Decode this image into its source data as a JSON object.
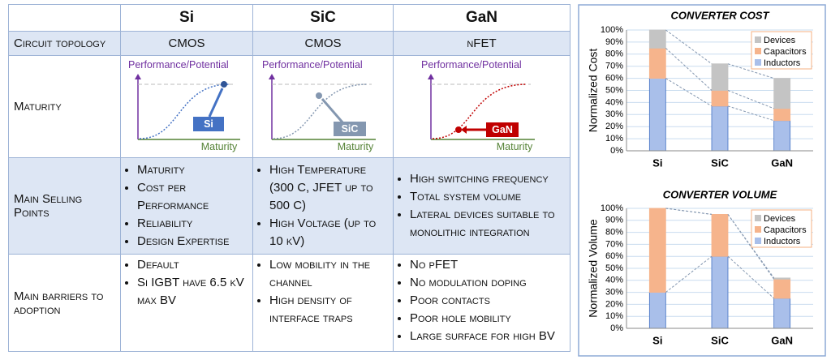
{
  "table": {
    "header": [
      "Si",
      "SiC",
      "GaN"
    ],
    "rows": [
      {
        "label": "Circuit topology",
        "cells": [
          "CMOS",
          "CMOS",
          "nFET"
        ]
      },
      {
        "label": "Maturity",
        "cells": [
          {
            "y_axis": "Performance/Potential",
            "x_axis": "Maturity",
            "tag": "Si"
          },
          {
            "y_axis": "Performance/Potential",
            "x_axis": "Maturity",
            "tag": "SiC"
          },
          {
            "y_axis": "Performance/Potential",
            "x_axis": "Maturity",
            "tag": "GaN"
          }
        ]
      },
      {
        "label": "Main Selling Points",
        "cells": [
          [
            "Maturity",
            "Cost per Performance",
            "Reliability",
            "Design Expertise"
          ],
          [
            "High Temperature (300 C, JFET up to 500 C)",
            "High Voltage (up to 10 kV)"
          ],
          [
            "High switching frequency",
            "Total system volume",
            "Lateral devices suitable to monolithic integration"
          ]
        ]
      },
      {
        "label": "Main barriers to adoption",
        "cells": [
          [
            "Default",
            "Si IGBT have 6.5 kV max BV"
          ],
          [
            "Low mobility in the channel",
            "High density of interface traps"
          ],
          [
            "No pFET",
            "No modulation doping",
            "Poor contacts",
            "Poor hole mobility",
            "Large surface for high BV"
          ]
        ]
      }
    ]
  },
  "chart_data": [
    {
      "type": "bar",
      "stacked": true,
      "title": "CONVERTER COST",
      "ylabel": "Normalized Cost",
      "categories": [
        "Si",
        "SiC",
        "GaN"
      ],
      "series": [
        {
          "name": "Inductors",
          "color": "#a9bfea",
          "values": [
            60,
            37,
            25
          ]
        },
        {
          "name": "Capacitors",
          "color": "#f6b48c",
          "values": [
            25,
            13,
            10
          ]
        },
        {
          "name": "Devices",
          "color": "#c4c4c4",
          "values": [
            15,
            22,
            25
          ]
        }
      ],
      "ylim": [
        0,
        100
      ],
      "yticks": [
        {
          "value": 0,
          "label": "0%"
        },
        {
          "value": 10,
          "label": "10%"
        },
        {
          "value": 20,
          "label": "20%"
        },
        {
          "value": 30,
          "label": "30%"
        },
        {
          "value": 40,
          "label": "40%"
        },
        {
          "value": 50,
          "label": "50%"
        },
        {
          "value": 60,
          "label": "60%"
        },
        {
          "value": 70,
          "label": "70%"
        },
        {
          "value": 80,
          "label": "80%"
        },
        {
          "value": 90,
          "label": "90%"
        },
        {
          "value": 100,
          "label": "100%"
        }
      ],
      "grid": true,
      "legend": "top-right"
    },
    {
      "type": "bar",
      "stacked": true,
      "title": "CONVERTER VOLUME",
      "ylabel": "Normalized Volume",
      "categories": [
        "Si",
        "SiC",
        "GaN"
      ],
      "series": [
        {
          "name": "Inductors",
          "color": "#a9bfea",
          "values": [
            30,
            60,
            25
          ]
        },
        {
          "name": "Capacitors",
          "color": "#f6b48c",
          "values": [
            70,
            35,
            16
          ]
        },
        {
          "name": "Devices",
          "color": "#c4c4c4",
          "values": [
            0,
            0,
            1
          ]
        }
      ],
      "ylim": [
        0,
        100
      ],
      "yticks": [
        {
          "value": 0,
          "label": "0%"
        },
        {
          "value": 10,
          "label": "10%"
        },
        {
          "value": 20,
          "label": "20%"
        },
        {
          "value": 30,
          "label": "30%"
        },
        {
          "value": 40,
          "label": "40%"
        },
        {
          "value": 50,
          "label": "50%"
        },
        {
          "value": 60,
          "label": "60%"
        },
        {
          "value": 70,
          "label": "70%"
        },
        {
          "value": 80,
          "label": "80%"
        },
        {
          "value": 90,
          "label": "90%"
        },
        {
          "value": 100,
          "label": "100%"
        }
      ],
      "grid": true,
      "legend": "top-right"
    }
  ]
}
